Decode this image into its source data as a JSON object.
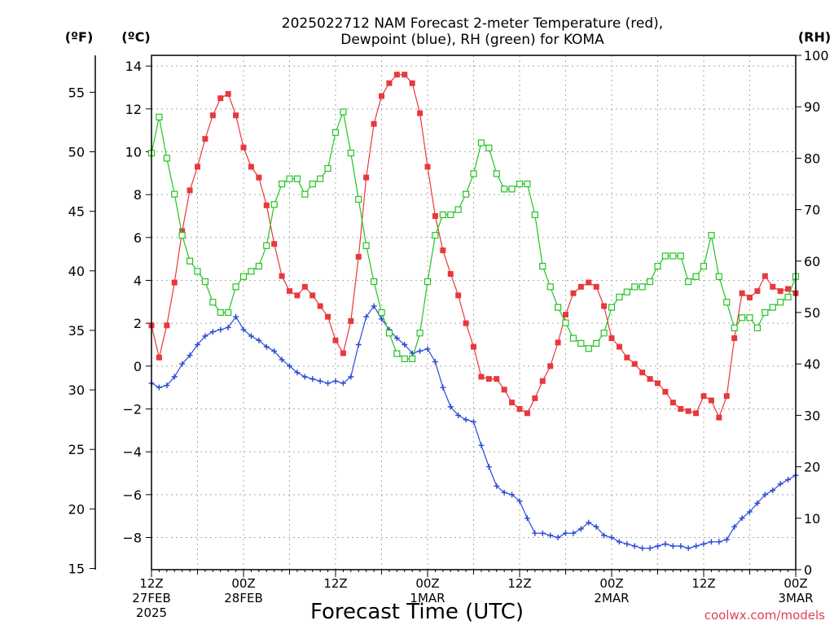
{
  "chart_data": {
    "type": "line",
    "title_line1": "2025022712 NAM Forecast 2-meter Temperature (red),",
    "title_line2": "Dewpoint (blue), RH (green) for KOMA",
    "xlabel": "Forecast Time (UTC)",
    "credit": "coolwx.com/models",
    "unit_f": "(ºF)",
    "unit_c": "(ºC)",
    "unit_rh": "(RH)",
    "x_hours_range": [
      0,
      84
    ],
    "ylim_c": [
      -9.5,
      14.5
    ],
    "ylim_rh": [
      0,
      100
    ],
    "ticks_c": [
      "14",
      "12",
      "10",
      "8",
      "6",
      "4",
      "2",
      "0",
      "−2",
      "−4",
      "−6",
      "−8"
    ],
    "ticks_c_values": [
      14,
      12,
      10,
      8,
      6,
      4,
      2,
      0,
      -2,
      -4,
      -6,
      -8
    ],
    "ticks_f": [
      "55",
      "50",
      "45",
      "40",
      "35",
      "30",
      "25",
      "20",
      "15"
    ],
    "ticks_f_values": [
      55,
      50,
      45,
      40,
      35,
      30,
      25,
      20,
      15
    ],
    "ticks_rh": [
      "100",
      "90",
      "80",
      "70",
      "60",
      "50",
      "40",
      "30",
      "20",
      "10",
      "0"
    ],
    "ticks_rh_values": [
      100,
      90,
      80,
      70,
      60,
      50,
      40,
      30,
      20,
      10,
      0
    ],
    "x_ticks": [
      {
        "h": 0,
        "l1": "12Z",
        "l2": "27FEB",
        "l3": "2025"
      },
      {
        "h": 12,
        "l1": "00Z",
        "l2": "28FEB",
        "l3": ""
      },
      {
        "h": 24,
        "l1": "12Z",
        "l2": "",
        "l3": ""
      },
      {
        "h": 36,
        "l1": "00Z",
        "l2": "1MAR",
        "l3": ""
      },
      {
        "h": 48,
        "l1": "12Z",
        "l2": "",
        "l3": ""
      },
      {
        "h": 60,
        "l1": "00Z",
        "l2": "2MAR",
        "l3": ""
      },
      {
        "h": 72,
        "l1": "12Z",
        "l2": "",
        "l3": ""
      },
      {
        "h": 84,
        "l1": "00Z",
        "l2": "3MAR",
        "l3": ""
      }
    ],
    "series": [
      {
        "name": "Temperature",
        "unit": "C",
        "color": "#e8383c",
        "marker": "filled-square",
        "values": [
          1.9,
          0.4,
          1.9,
          3.9,
          6.3,
          8.2,
          9.3,
          10.6,
          11.7,
          12.5,
          12.7,
          11.7,
          10.2,
          9.3,
          8.8,
          7.5,
          5.7,
          4.2,
          3.5,
          3.3,
          3.7,
          3.3,
          2.8,
          2.3,
          1.2,
          0.6,
          2.1,
          5.1,
          8.8,
          11.3,
          12.6,
          13.2,
          13.6,
          13.6,
          13.2,
          11.8,
          9.3,
          7.0,
          5.4,
          4.3,
          3.3,
          2.0,
          0.9,
          -0.5,
          -0.6,
          -0.6,
          -1.1,
          -1.7,
          -2.0,
          -2.2,
          -1.5,
          -0.7,
          0.0,
          1.1,
          2.4,
          3.4,
          3.7,
          3.9,
          3.7,
          2.8,
          1.3,
          0.9,
          0.4,
          0.1,
          -0.3,
          -0.6,
          -0.8,
          -1.2,
          -1.7,
          -2.0,
          -2.1,
          -2.2,
          -1.4,
          -1.6,
          -2.4,
          -1.4,
          1.3,
          3.4,
          3.2,
          3.5,
          4.2,
          3.7,
          3.5,
          3.6,
          3.4
        ]
      },
      {
        "name": "Dewpoint",
        "unit": "C",
        "color": "#2a49d6",
        "marker": "plus",
        "values": [
          -0.8,
          -1.0,
          -0.9,
          -0.5,
          0.1,
          0.5,
          1.0,
          1.4,
          1.6,
          1.7,
          1.8,
          2.3,
          1.7,
          1.4,
          1.2,
          0.9,
          0.7,
          0.3,
          0.0,
          -0.3,
          -0.5,
          -0.6,
          -0.7,
          -0.8,
          -0.7,
          -0.8,
          -0.5,
          1.0,
          2.3,
          2.8,
          2.2,
          1.7,
          1.3,
          1.0,
          0.6,
          0.7,
          0.8,
          0.2,
          -1.0,
          -1.9,
          -2.3,
          -2.5,
          -2.6,
          -3.7,
          -4.7,
          -5.6,
          -5.9,
          -6.0,
          -6.3,
          -7.1,
          -7.8,
          -7.8,
          -7.9,
          -8.0,
          -7.8,
          -7.8,
          -7.6,
          -7.3,
          -7.5,
          -7.9,
          -8.0,
          -8.2,
          -8.3,
          -8.4,
          -8.5,
          -8.5,
          -8.4,
          -8.3,
          -8.4,
          -8.4,
          -8.5,
          -8.4,
          -8.3,
          -8.2,
          -8.2,
          -8.1,
          -7.5,
          -7.1,
          -6.8,
          -6.4,
          -6.0,
          -5.8,
          -5.5,
          -5.3,
          -5.1
        ]
      },
      {
        "name": "RH",
        "unit": "%",
        "color": "#22c422",
        "marker": "open-square",
        "values": [
          81,
          88,
          80,
          73,
          65,
          60,
          58,
          56,
          52,
          50,
          50,
          55,
          57,
          58,
          59,
          63,
          71,
          75,
          76,
          76,
          73,
          75,
          76,
          78,
          85,
          89,
          81,
          72,
          63,
          56,
          50,
          46,
          42,
          41,
          41,
          46,
          56,
          65,
          69,
          69,
          70,
          73,
          77,
          83,
          82,
          77,
          74,
          74,
          75,
          75,
          69,
          59,
          55,
          51,
          48,
          45,
          44,
          43,
          44,
          46,
          51,
          53,
          54,
          55,
          55,
          56,
          59,
          61,
          61,
          61,
          56,
          57,
          59,
          65,
          57,
          52,
          47,
          49,
          49,
          47,
          50,
          51,
          52,
          53,
          57
        ]
      }
    ]
  }
}
